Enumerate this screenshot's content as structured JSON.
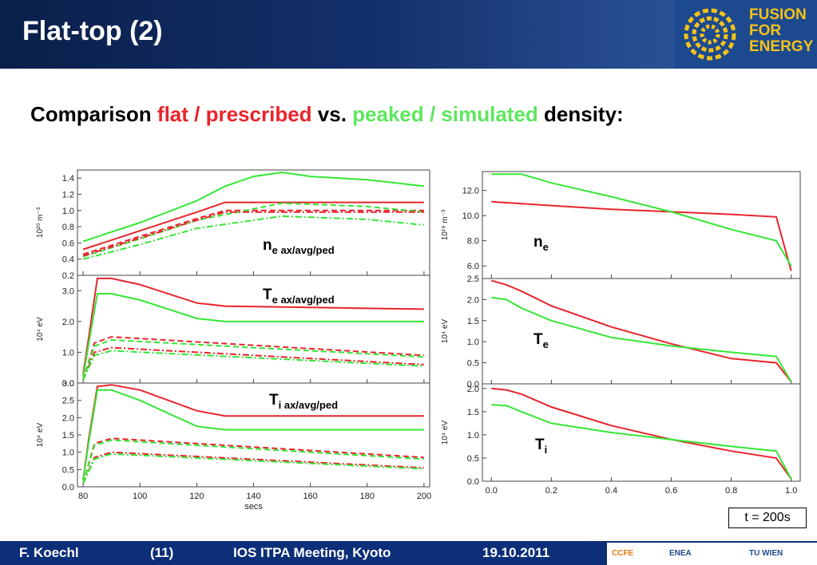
{
  "header": {
    "title": "Flat-top (2)"
  },
  "logo": {
    "line1": "FUSION",
    "line2": "FOR",
    "line3": "ENERGY"
  },
  "subtitle": {
    "p1": "Comparison ",
    "p2": "flat / prescribed",
    "p3": " vs. ",
    "p4": "peaked / simulated",
    "p5": " density:"
  },
  "colors": {
    "flat_prescribed": "#e8242b",
    "peaked_simulated": "#35e635",
    "header_bg": "#0a1f4a",
    "footer_bg": "#0d2f7a",
    "logo_gold": "#f4c219"
  },
  "left_panel": {
    "x_ticks": [
      "80",
      "100",
      "120",
      "140",
      "160",
      "180",
      "200"
    ],
    "x_label": "secs",
    "subplots": [
      {
        "label_main": "n",
        "label_sub": "e ax/avg/ped",
        "y_unit": "10²⁰  m⁻³",
        "y_ticks": [
          "0.2",
          "0.4",
          "0.6",
          "0.8",
          "1.0",
          "1.2",
          "1.4"
        ]
      },
      {
        "label_main": "T",
        "label_sub": "e ax/avg/ped",
        "y_unit": "10⁴  eV",
        "y_ticks": [
          "0.0",
          "1.0",
          "2.0",
          "3.0"
        ]
      },
      {
        "label_main": "T",
        "label_sub": "i ax/avg/ped",
        "y_unit": "10⁴  eV",
        "y_ticks": [
          "0.0",
          "0.5",
          "1.0",
          "1.5",
          "2.0",
          "2.5",
          "3.0"
        ]
      }
    ]
  },
  "right_panel": {
    "x_ticks": [
      "0.0",
      "0.2",
      "0.4",
      "0.6",
      "0.8",
      "1.0"
    ],
    "subplots": [
      {
        "label_main": "n",
        "label_sub": "e",
        "y_unit": "10¹⁹  m⁻³",
        "y_ticks": [
          "6.0",
          "8.0",
          "10.0",
          "12.0"
        ]
      },
      {
        "label_main": "T",
        "label_sub": "e",
        "y_unit": "10⁴  eV",
        "y_ticks": [
          "0.0",
          "0.5",
          "1.0",
          "1.5",
          "2.0",
          "2.5"
        ]
      },
      {
        "label_main": "T",
        "label_sub": "i",
        "y_unit": "10⁴  eV",
        "y_ticks": [
          "0.0",
          "0.5",
          "1.0",
          "1.5",
          "2.0"
        ]
      }
    ]
  },
  "time_badge": "t = 200s",
  "footer": {
    "author": "F. Koechl",
    "page": "(11)",
    "meeting": "IOS ITPA Meeting, Kyoto",
    "date": "19.10.2011"
  },
  "sponsors": [
    "CCFE",
    "ENEA",
    "TU WIEN"
  ],
  "chart_data": [
    {
      "type": "line",
      "panel": "n_e ax/avg/ped",
      "xlabel": "secs",
      "xlim": [
        78,
        202
      ],
      "ylim": [
        0.2,
        1.5
      ],
      "series": [
        {
          "color": "#e8242b",
          "style": "solid",
          "x": [
            80,
            100,
            120,
            130,
            200
          ],
          "y": [
            0.52,
            0.75,
            0.98,
            1.1,
            1.1
          ]
        },
        {
          "color": "#35e635",
          "style": "solid",
          "x": [
            80,
            100,
            120,
            130,
            140,
            150,
            160,
            180,
            200
          ],
          "y": [
            0.62,
            0.85,
            1.12,
            1.3,
            1.42,
            1.47,
            1.42,
            1.38,
            1.3
          ]
        },
        {
          "color": "#e8242b",
          "style": "dash",
          "x": [
            80,
            100,
            120,
            130,
            200
          ],
          "y": [
            0.46,
            0.68,
            0.9,
            1.0,
            1.0
          ]
        },
        {
          "color": "#35e635",
          "style": "dash",
          "x": [
            80,
            100,
            120,
            150,
            180,
            200
          ],
          "y": [
            0.43,
            0.65,
            0.88,
            1.09,
            1.05,
            0.98
          ]
        },
        {
          "color": "#e8242b",
          "style": "dashdot",
          "x": [
            80,
            100,
            120,
            130,
            200
          ],
          "y": [
            0.44,
            0.66,
            0.88,
            0.98,
            0.98
          ]
        },
        {
          "color": "#35e635",
          "style": "dashdot",
          "x": [
            80,
            100,
            120,
            150,
            180,
            200
          ],
          "y": [
            0.4,
            0.58,
            0.78,
            0.93,
            0.89,
            0.82
          ]
        }
      ]
    },
    {
      "type": "line",
      "panel": "T_e ax/avg/ped",
      "xlabel": "secs",
      "xlim": [
        78,
        202
      ],
      "ylim": [
        0.0,
        3.5
      ],
      "series": [
        {
          "color": "#e8242b",
          "style": "solid",
          "x": [
            80,
            82,
            85,
            90,
            100,
            120,
            130,
            200
          ],
          "y": [
            0.3,
            1.5,
            3.4,
            3.4,
            3.2,
            2.6,
            2.5,
            2.4
          ]
        },
        {
          "color": "#35e635",
          "style": "solid",
          "x": [
            80,
            82,
            85,
            90,
            100,
            120,
            130,
            200
          ],
          "y": [
            0.2,
            1.3,
            2.9,
            2.9,
            2.7,
            2.1,
            2.0,
            2.0
          ]
        },
        {
          "color": "#e8242b",
          "style": "dash",
          "x": [
            80,
            84,
            90,
            200
          ],
          "y": [
            0.1,
            1.3,
            1.5,
            0.9
          ]
        },
        {
          "color": "#35e635",
          "style": "dash",
          "x": [
            80,
            84,
            90,
            200
          ],
          "y": [
            0.1,
            1.2,
            1.4,
            0.85
          ]
        },
        {
          "color": "#e8242b",
          "style": "dashdot",
          "x": [
            80,
            84,
            90,
            200
          ],
          "y": [
            0.1,
            1.0,
            1.15,
            0.6
          ]
        },
        {
          "color": "#35e635",
          "style": "dashdot",
          "x": [
            80,
            84,
            90,
            200
          ],
          "y": [
            0.1,
            0.9,
            1.05,
            0.55
          ]
        }
      ]
    },
    {
      "type": "line",
      "panel": "T_i ax/avg/ped",
      "xlabel": "secs",
      "xlim": [
        78,
        202
      ],
      "ylim": [
        0.0,
        3.0
      ],
      "series": [
        {
          "color": "#e8242b",
          "style": "solid",
          "x": [
            80,
            82,
            85,
            90,
            100,
            120,
            130,
            200
          ],
          "y": [
            0.2,
            1.4,
            2.9,
            2.95,
            2.8,
            2.2,
            2.05,
            2.05
          ]
        },
        {
          "color": "#35e635",
          "style": "solid",
          "x": [
            80,
            82,
            85,
            90,
            100,
            120,
            130,
            200
          ],
          "y": [
            0.2,
            1.3,
            2.8,
            2.8,
            2.5,
            1.75,
            1.65,
            1.65
          ]
        },
        {
          "color": "#e8242b",
          "style": "dash",
          "x": [
            80,
            84,
            90,
            200
          ],
          "y": [
            0.1,
            1.25,
            1.4,
            0.85
          ]
        },
        {
          "color": "#35e635",
          "style": "dash",
          "x": [
            80,
            84,
            90,
            200
          ],
          "y": [
            0.1,
            1.2,
            1.35,
            0.8
          ]
        },
        {
          "color": "#e8242b",
          "style": "dashdot",
          "x": [
            80,
            84,
            90,
            200
          ],
          "y": [
            0.1,
            0.85,
            1.0,
            0.55
          ]
        },
        {
          "color": "#35e635",
          "style": "dashdot",
          "x": [
            80,
            84,
            90,
            200
          ],
          "y": [
            0.1,
            0.8,
            0.95,
            0.52
          ]
        }
      ]
    },
    {
      "type": "line",
      "panel": "n_e profile",
      "xlim": [
        -0.03,
        1.03
      ],
      "ylim": [
        5.0,
        13.5
      ],
      "series": [
        {
          "color": "#e8242b",
          "style": "solid",
          "x": [
            0,
            0.2,
            0.4,
            0.6,
            0.8,
            0.95,
            1.0
          ],
          "y": [
            11.1,
            10.8,
            10.5,
            10.3,
            10.1,
            9.9,
            5.6
          ]
        },
        {
          "color": "#35e635",
          "style": "solid",
          "x": [
            0,
            0.1,
            0.2,
            0.4,
            0.6,
            0.8,
            0.95,
            1.0
          ],
          "y": [
            13.3,
            13.3,
            12.6,
            11.5,
            10.3,
            8.9,
            8.0,
            6.0
          ]
        }
      ]
    },
    {
      "type": "line",
      "panel": "T_e profile",
      "xlim": [
        -0.03,
        1.03
      ],
      "ylim": [
        0.0,
        2.5
      ],
      "series": [
        {
          "color": "#e8242b",
          "style": "solid",
          "x": [
            0,
            0.05,
            0.1,
            0.2,
            0.4,
            0.6,
            0.8,
            0.95,
            1.0
          ],
          "y": [
            2.45,
            2.35,
            2.2,
            1.85,
            1.35,
            0.95,
            0.6,
            0.5,
            0.05
          ]
        },
        {
          "color": "#35e635",
          "style": "solid",
          "x": [
            0,
            0.05,
            0.1,
            0.2,
            0.4,
            0.6,
            0.8,
            0.95,
            1.0
          ],
          "y": [
            2.05,
            2.0,
            1.8,
            1.5,
            1.1,
            0.9,
            0.75,
            0.65,
            0.05
          ]
        }
      ]
    },
    {
      "type": "line",
      "panel": "T_i profile",
      "xlim": [
        -0.03,
        1.03
      ],
      "ylim": [
        0.0,
        2.1
      ],
      "series": [
        {
          "color": "#e8242b",
          "style": "solid",
          "x": [
            0,
            0.05,
            0.1,
            0.2,
            0.4,
            0.6,
            0.8,
            0.95,
            1.0
          ],
          "y": [
            2.0,
            1.97,
            1.88,
            1.6,
            1.2,
            0.9,
            0.65,
            0.5,
            0.05
          ]
        },
        {
          "color": "#35e635",
          "style": "solid",
          "x": [
            0,
            0.05,
            0.1,
            0.2,
            0.4,
            0.6,
            0.8,
            0.95,
            1.0
          ],
          "y": [
            1.65,
            1.63,
            1.5,
            1.25,
            1.05,
            0.9,
            0.75,
            0.65,
            0.05
          ]
        }
      ]
    }
  ]
}
